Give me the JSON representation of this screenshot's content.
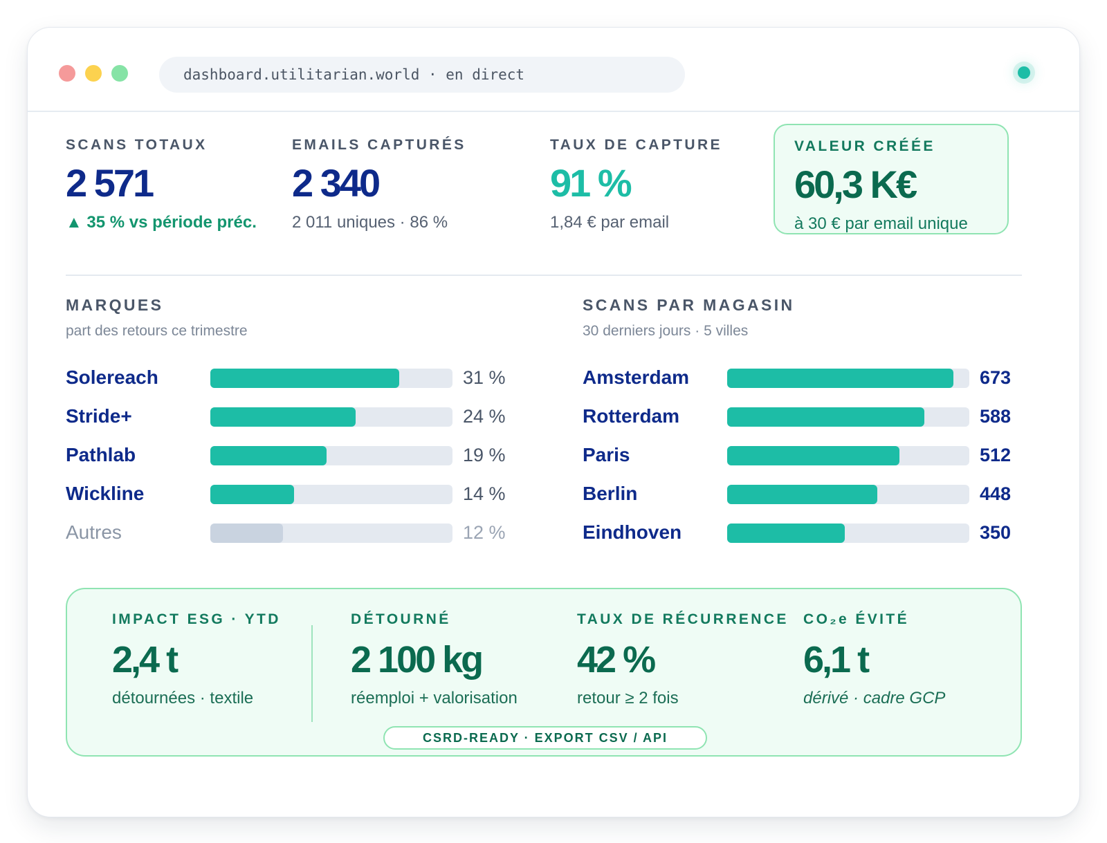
{
  "window": {
    "url": "dashboard.utilitarian.world · en direct",
    "colors": {
      "accent": "#1dbda6",
      "navy": "#0e2a8a",
      "green": "#0b6a4f",
      "card_bg": "#effcf5"
    }
  },
  "kpis": {
    "scans": {
      "label": "SCANS TOTAUX",
      "value": "2 571",
      "sub": "▲ 35 % vs période préc."
    },
    "emails": {
      "label": "EMAILS CAPTURÉS",
      "value": "2 340",
      "sub": "2 011 uniques · 86 %"
    },
    "rate": {
      "label": "TAUX DE CAPTURE",
      "value": "91 %",
      "sub": "1,84 € par email"
    },
    "value_created": {
      "label": "VALEUR CRÉÉE",
      "value": "60,3 K€",
      "sub": "à 30 € par email unique"
    }
  },
  "brands": {
    "title": "MARQUES",
    "subtitle": "part des retours ce trimestre",
    "items": [
      {
        "label": "Solereach",
        "value_label": "31 %",
        "fraction": 0.78,
        "muted": false
      },
      {
        "label": "Stride+",
        "value_label": "24 %",
        "fraction": 0.6,
        "muted": false
      },
      {
        "label": "Pathlab",
        "value_label": "19 %",
        "fraction": 0.48,
        "muted": false
      },
      {
        "label": "Wickline",
        "value_label": "14 %",
        "fraction": 0.345,
        "muted": false
      },
      {
        "label": "Autres",
        "value_label": "12 %",
        "fraction": 0.3,
        "muted": true
      }
    ]
  },
  "stores": {
    "title": "SCANS PAR MAGASIN",
    "subtitle": "30 derniers jours · 5 villes",
    "items": [
      {
        "label": "Amsterdam",
        "value_label": "673",
        "fraction": 0.935
      },
      {
        "label": "Rotterdam",
        "value_label": "588",
        "fraction": 0.815
      },
      {
        "label": "Paris",
        "value_label": "512",
        "fraction": 0.71
      },
      {
        "label": "Berlin",
        "value_label": "448",
        "fraction": 0.62
      },
      {
        "label": "Eindhoven",
        "value_label": "350",
        "fraction": 0.487
      }
    ]
  },
  "esg": {
    "impact": {
      "label": "IMPACT ESG · YTD",
      "value": "2,4 t",
      "sub": "détournées · textile"
    },
    "diverted": {
      "label": "DÉTOURNÉ",
      "value": "2 100 kg",
      "sub": "réemploi + valorisation"
    },
    "recurrence": {
      "label": "TAUX DE RÉCURRENCE",
      "value": "42 %",
      "sub": "retour ≥ 2 fois"
    },
    "co2": {
      "label": "CO₂e ÉVITÉ",
      "value": "6,1 t",
      "sub": "dérivé · cadre GCP"
    },
    "badge": "CSRD-READY · EXPORT CSV / API"
  }
}
